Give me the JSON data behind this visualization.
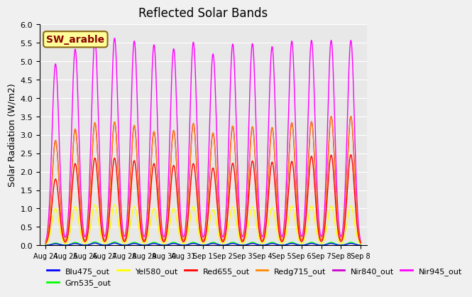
{
  "title": "Reflected Solar Bands",
  "ylabel": "Solar Radiation (W/m2)",
  "annotation": "SW_arable",
  "ylim": [
    0.0,
    6.0
  ],
  "yticks": [
    0.0,
    0.5,
    1.0,
    1.5,
    2.0,
    2.5,
    3.0,
    3.5,
    4.0,
    4.5,
    5.0,
    5.5,
    6.0
  ],
  "xtick_labels": [
    "Aug 24",
    "Aug 25",
    "Aug 26",
    "Aug 27",
    "Aug 28",
    "Aug 29",
    "Aug 30",
    "Aug 31",
    "Sep 1",
    "Sep 2",
    "Sep 3",
    "Sep 4",
    "Sep 5",
    "Sep 6",
    "Sep 7",
    "Sep 8"
  ],
  "series": [
    {
      "name": "Blu475_out",
      "color": "#0000ff"
    },
    {
      "name": "Grn535_out",
      "color": "#00ff00"
    },
    {
      "name": "Yel580_out",
      "color": "#ffff00"
    },
    {
      "name": "Red655_out",
      "color": "#ff0000"
    },
    {
      "name": "Redg715_out",
      "color": "#ff8800"
    },
    {
      "name": "Nir840_out",
      "color": "#cc00cc"
    },
    {
      "name": "Nir945_out",
      "color": "#ff00ff"
    }
  ],
  "peaks_nir945": [
    4.93,
    5.33,
    5.59,
    5.63,
    5.55,
    5.45,
    5.34,
    5.52,
    5.2,
    5.47,
    5.48,
    5.4,
    5.55,
    5.57,
    5.57,
    5.57
  ],
  "peaks_nir840": [
    2.85,
    3.16,
    3.33,
    3.35,
    3.26,
    3.09,
    3.12,
    3.31,
    3.05,
    3.24,
    3.22,
    3.2,
    3.33,
    3.36,
    3.5,
    3.5
  ],
  "peaks_redg715": [
    2.85,
    3.16,
    3.33,
    3.35,
    3.26,
    3.09,
    3.12,
    3.31,
    3.05,
    3.24,
    3.22,
    3.2,
    3.33,
    3.36,
    3.5,
    3.5
  ],
  "peaks_red655": [
    1.8,
    2.22,
    2.37,
    2.37,
    2.3,
    2.22,
    2.17,
    2.22,
    2.1,
    2.23,
    2.29,
    2.26,
    2.28,
    2.42,
    2.45,
    2.46
  ],
  "peaks_yel580": [
    1.0,
    1.05,
    1.1,
    1.1,
    1.05,
    1.0,
    1.0,
    1.05,
    0.97,
    1.04,
    1.04,
    1.02,
    1.07,
    1.07,
    1.07,
    1.07
  ],
  "peaks_grn535": [
    0.06,
    0.08,
    0.09,
    0.09,
    0.08,
    0.08,
    0.08,
    0.08,
    0.08,
    0.08,
    0.08,
    0.08,
    0.08,
    0.08,
    0.08,
    0.08
  ],
  "peaks_blu475": [
    0.04,
    0.05,
    0.06,
    0.06,
    0.05,
    0.05,
    0.05,
    0.05,
    0.05,
    0.05,
    0.05,
    0.05,
    0.05,
    0.05,
    0.05,
    0.05
  ],
  "n_days": 16,
  "points_per_day": 100,
  "background_color": "#e8e8e8",
  "grid_color": "#ffffff"
}
